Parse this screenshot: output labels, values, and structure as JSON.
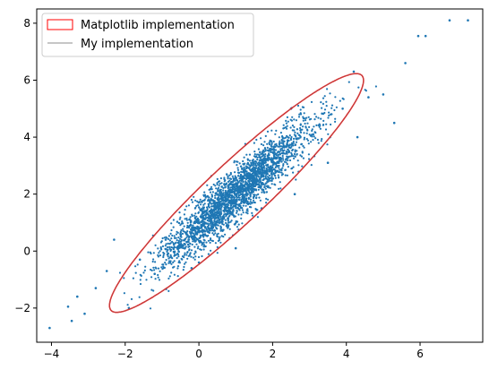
{
  "chart_data": {
    "type": "scatter",
    "xlim": [
      -4.4,
      7.7
    ],
    "ylim": [
      -3.2,
      8.5
    ],
    "x_ticks": [
      -4,
      -2,
      0,
      2,
      4,
      6
    ],
    "y_ticks": [
      -2,
      0,
      2,
      4,
      6,
      8
    ],
    "x_tick_labels": [
      "−4",
      "−2",
      "0",
      "2",
      "4",
      "6"
    ],
    "y_tick_labels": [
      "−2",
      "0",
      "2",
      "4",
      "6",
      "8"
    ],
    "grid": false,
    "legend_position": "upper-left",
    "scatter_color": "#1f77b4",
    "points": [
      [
        -4.05,
        -2.7
      ],
      [
        -3.45,
        -2.45
      ],
      [
        -3.3,
        -1.6
      ],
      [
        -3.1,
        -2.2
      ],
      [
        -2.8,
        -1.3
      ],
      [
        -2.5,
        -0.7
      ],
      [
        -1.9,
        -2.0
      ],
      [
        -1.6,
        -0.3
      ],
      [
        -1.2,
        -0.8
      ],
      [
        -0.9,
        0.4
      ],
      [
        -0.5,
        0.6
      ],
      [
        -0.2,
        -0.6
      ],
      [
        0.3,
        1.7
      ],
      [
        0.8,
        0.9
      ],
      [
        1.2,
        2.6
      ],
      [
        1.7,
        1.5
      ],
      [
        2.2,
        3.4
      ],
      [
        2.6,
        2.0
      ],
      [
        3.1,
        4.1
      ],
      [
        3.5,
        3.1
      ],
      [
        3.9,
        5.0
      ],
      [
        4.3,
        4.0
      ],
      [
        4.6,
        5.4
      ],
      [
        5.0,
        5.5
      ],
      [
        5.3,
        4.5
      ],
      [
        5.6,
        6.6
      ],
      [
        5.95,
        7.55
      ],
      [
        6.15,
        7.55
      ],
      [
        6.8,
        8.1
      ],
      [
        7.3,
        8.1
      ],
      [
        -2.3,
        0.4
      ],
      [
        -3.55,
        -1.95
      ],
      [
        1.0,
        0.1
      ],
      [
        2.5,
        5.0
      ],
      [
        0.0,
        -0.4
      ],
      [
        4.2,
        6.3
      ]
    ],
    "cluster": {
      "n": 2600,
      "mean": [
        1.0,
        2.0
      ],
      "std_along": 1.62,
      "std_across": 0.3,
      "angle_deg": 50.9,
      "seed": 7
    },
    "series": [
      {
        "name": "Matplotlib implementation",
        "kind": "ellipse",
        "center": [
          1.02,
          2.04
        ],
        "semi_major": 5.35,
        "semi_minor": 0.9,
        "angle_deg": 50.9,
        "color": "#ff0000"
      },
      {
        "name": "My implementation",
        "kind": "ellipse",
        "center": [
          1.02,
          2.04
        ],
        "semi_major": 5.35,
        "semi_minor": 0.9,
        "angle_deg": 50.9,
        "color": "#808080"
      }
    ]
  }
}
